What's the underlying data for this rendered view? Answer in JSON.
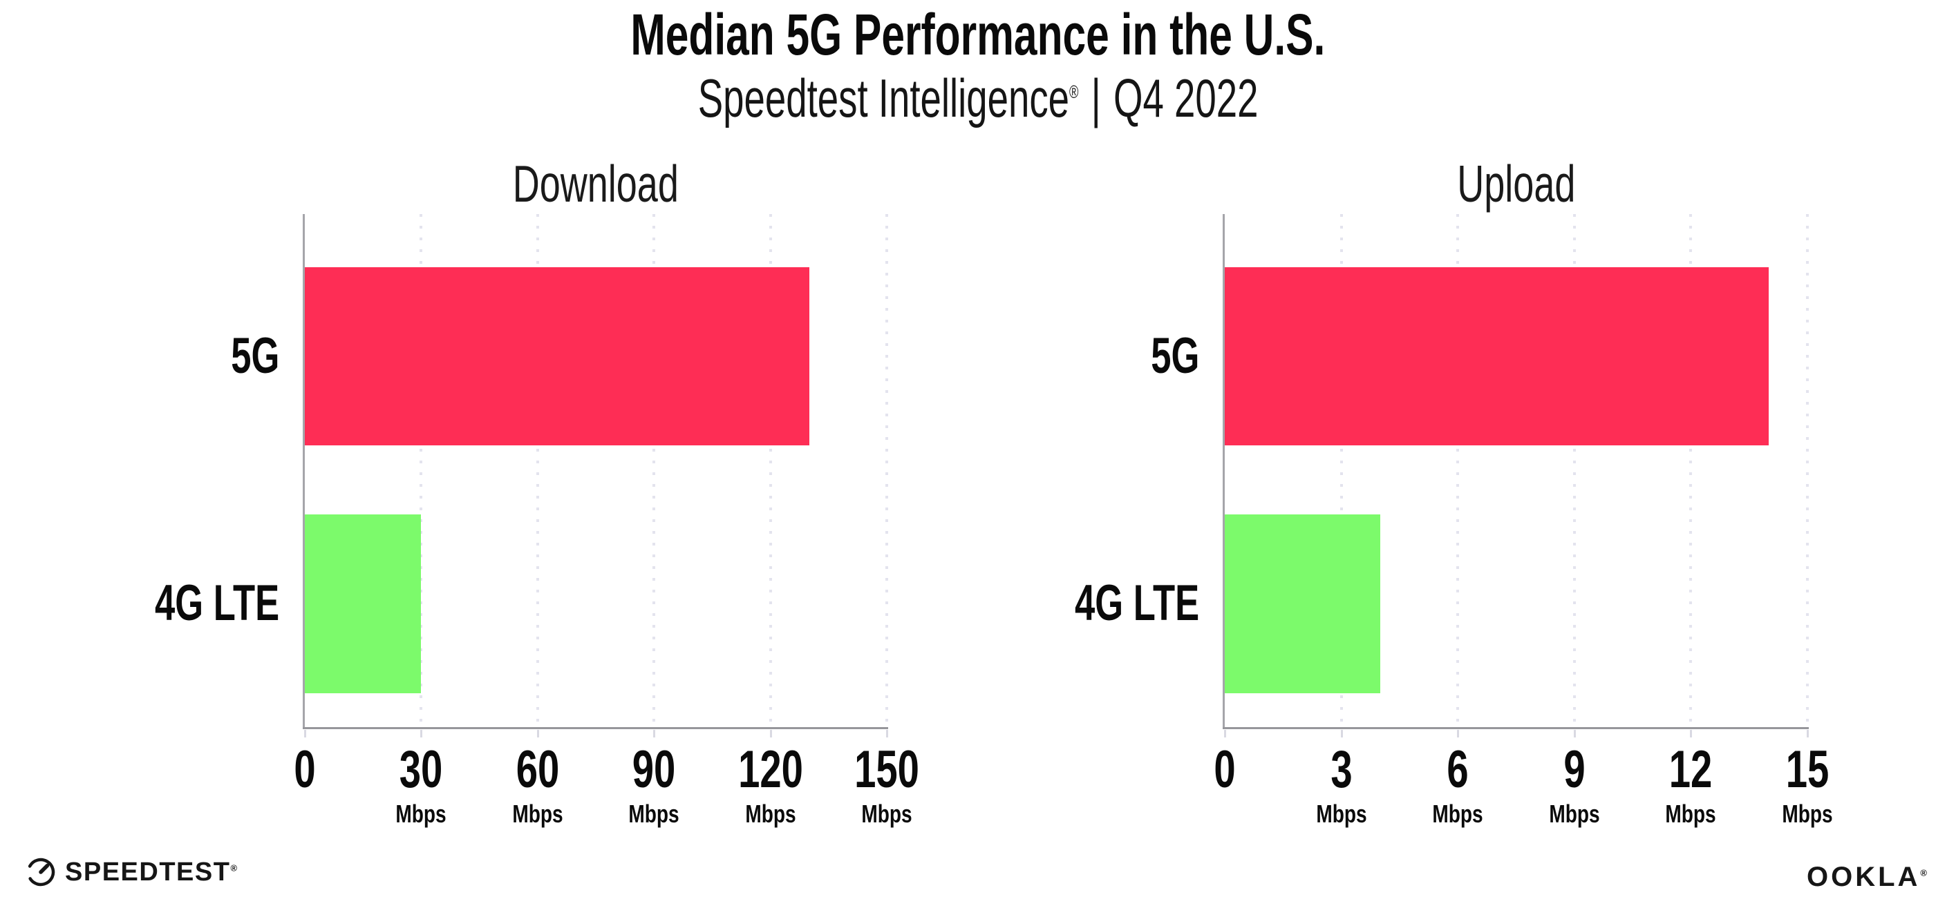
{
  "header": {
    "title": "Median 5G Performance in the U.S.",
    "subtitle_brand": "Speedtest Intelligence",
    "registered_mark": "®",
    "subtitle_separator": "|",
    "subtitle_period": "Q4 2022"
  },
  "chart_data": [
    {
      "type": "bar",
      "orientation": "horizontal",
      "title": "Download",
      "categories": [
        "5G",
        "4G LTE"
      ],
      "values": [
        130,
        30
      ],
      "unit": "Mbps",
      "xlim": [
        0,
        150
      ],
      "xticks": [
        0,
        30,
        60,
        90,
        120,
        150
      ],
      "series_colors": [
        "#fe2d55",
        "#7cfa6b"
      ],
      "grid": "vertical-dotted",
      "legend": "none"
    },
    {
      "type": "bar",
      "orientation": "horizontal",
      "title": "Upload",
      "categories": [
        "5G",
        "4G LTE"
      ],
      "values": [
        14,
        4
      ],
      "unit": "Mbps",
      "xlim": [
        0,
        15
      ],
      "xticks": [
        0,
        3,
        6,
        9,
        12,
        15
      ],
      "series_colors": [
        "#fe2d55",
        "#7cfa6b"
      ],
      "grid": "vertical-dotted",
      "legend": "none"
    }
  ],
  "footer": {
    "speedtest_logo_text": "SPEEDTEST",
    "ookla_logo_text": "OOKLA",
    "registered_mark": "®"
  },
  "colors": {
    "bar_5g": "#fe2d55",
    "bar_4g_lte": "#7cfa6b",
    "axis_spine": "#9b9ba1",
    "gridline": "#e3e3ee",
    "text": "#111111",
    "background": "#ffffff"
  }
}
